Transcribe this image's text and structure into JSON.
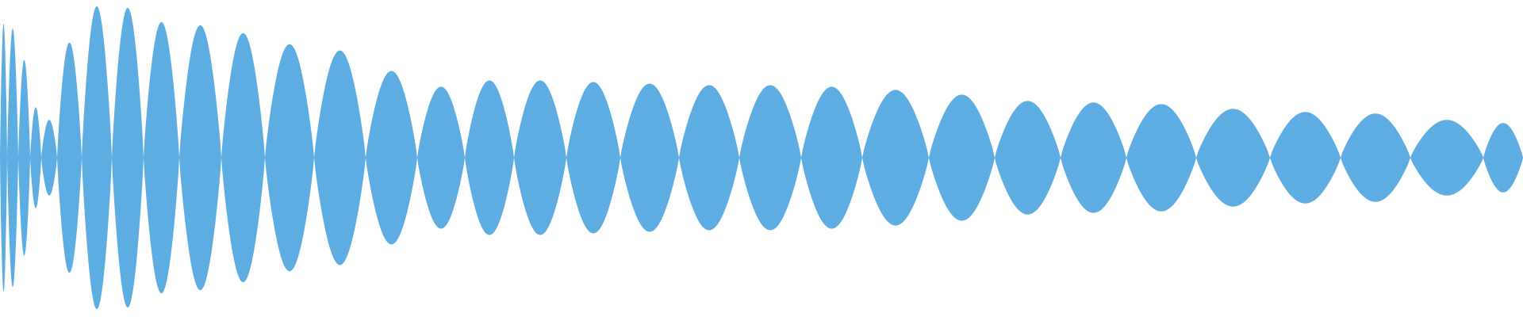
{
  "waveform": {
    "fill_color": "#5dade2",
    "background_color": "#ffffff",
    "segments": [
      {
        "amplitude": 0.82
      },
      {
        "amplitude": 0.62
      },
      {
        "amplitude": 0.32
      },
      {
        "amplitude": 0.24
      },
      {
        "amplitude": 0.73
      },
      {
        "amplitude": 0.96
      },
      {
        "amplitude": 0.95
      },
      {
        "amplitude": 0.86
      },
      {
        "amplitude": 0.84
      },
      {
        "amplitude": 0.79
      },
      {
        "amplitude": 0.72
      },
      {
        "amplitude": 0.68
      },
      {
        "amplitude": 0.55
      },
      {
        "amplitude": 0.45
      },
      {
        "amplitude": 0.49
      },
      {
        "amplitude": 0.49
      },
      {
        "amplitude": 0.48
      },
      {
        "amplitude": 0.47
      },
      {
        "amplitude": 0.46
      },
      {
        "amplitude": 0.46
      },
      {
        "amplitude": 0.45
      },
      {
        "amplitude": 0.43
      },
      {
        "amplitude": 0.4
      },
      {
        "amplitude": 0.36
      },
      {
        "amplitude": 0.35
      },
      {
        "amplitude": 0.34
      },
      {
        "amplitude": 0.31
      },
      {
        "amplitude": 0.29
      },
      {
        "amplitude": 0.28
      },
      {
        "amplitude": 0.24
      },
      {
        "amplitude": 0.22
      }
    ]
  }
}
